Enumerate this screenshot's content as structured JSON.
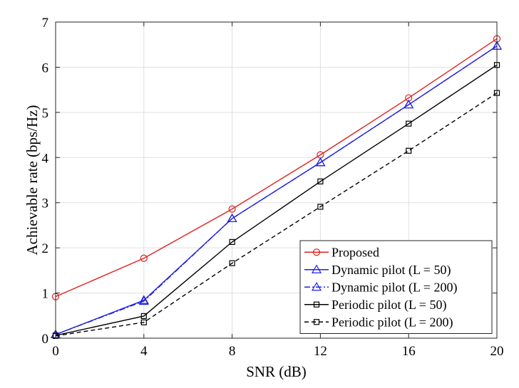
{
  "chart_data": {
    "type": "line",
    "x": [
      0,
      4,
      8,
      12,
      16,
      20
    ],
    "xlabel": "SNR (dB)",
    "ylabel": "Achievable rate (bps/Hz)",
    "xlim": [
      0,
      20
    ],
    "ylim": [
      0,
      7
    ],
    "xticks": [
      "0",
      "4",
      "8",
      "12",
      "16",
      "20"
    ],
    "yticks": [
      "0",
      "1",
      "2",
      "3",
      "4",
      "5",
      "6",
      "7"
    ],
    "grid": true,
    "legend_position": "bottom-right",
    "series": [
      {
        "name": "Proposed",
        "values": [
          0.92,
          1.77,
          2.86,
          4.06,
          5.32,
          6.63
        ],
        "color": "#e02020",
        "marker": "circle",
        "dash": "solid"
      },
      {
        "name": "Dynamic pilot (L = 50)",
        "values": [
          0.08,
          0.84,
          2.65,
          3.89,
          5.17,
          6.47
        ],
        "color": "#2020e0",
        "marker": "triangle",
        "dash": "solid"
      },
      {
        "name": "Dynamic pilot (L = 200)",
        "values": [
          0.08,
          0.82,
          2.65,
          3.89,
          5.17,
          6.47
        ],
        "color": "#2020e0",
        "marker": "triangle",
        "dash": "dashdot"
      },
      {
        "name": "Periodic pilot (L = 50)",
        "values": [
          0.06,
          0.49,
          2.13,
          3.47,
          4.75,
          6.05
        ],
        "color": "#000000",
        "marker": "square",
        "dash": "solid"
      },
      {
        "name": "Periodic pilot (L = 200)",
        "values": [
          0.05,
          0.35,
          1.66,
          2.91,
          4.15,
          5.43
        ],
        "color": "#000000",
        "marker": "square",
        "dash": "dashed"
      }
    ]
  }
}
